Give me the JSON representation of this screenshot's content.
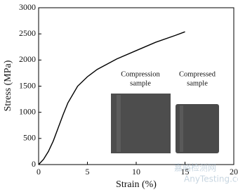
{
  "chart_data": {
    "type": "line",
    "x_label": "Strain (%)",
    "y_label": "Stress (MPa)",
    "x": [
      0,
      0.5,
      1,
      1.5,
      2,
      2.5,
      3,
      4,
      5,
      6,
      8,
      10,
      12,
      14,
      15
    ],
    "values": [
      0,
      100,
      250,
      450,
      700,
      950,
      1180,
      1500,
      1680,
      1820,
      2020,
      2180,
      2340,
      2470,
      2540
    ],
    "color": "#000000",
    "xlim": [
      0,
      20
    ],
    "xticks": [
      0,
      5,
      10,
      15,
      20
    ],
    "ylim": [
      0,
      3000
    ],
    "yticks": [
      0,
      500,
      1000,
      1500,
      2000,
      2500,
      3000
    ],
    "annotations": [
      {
        "lines": [
          "Compression",
          "sample"
        ]
      },
      {
        "lines": [
          "Compressed",
          "sample"
        ]
      }
    ],
    "watermark": [
      "嘉峪检测网",
      "AnyTesting.com"
    ]
  }
}
